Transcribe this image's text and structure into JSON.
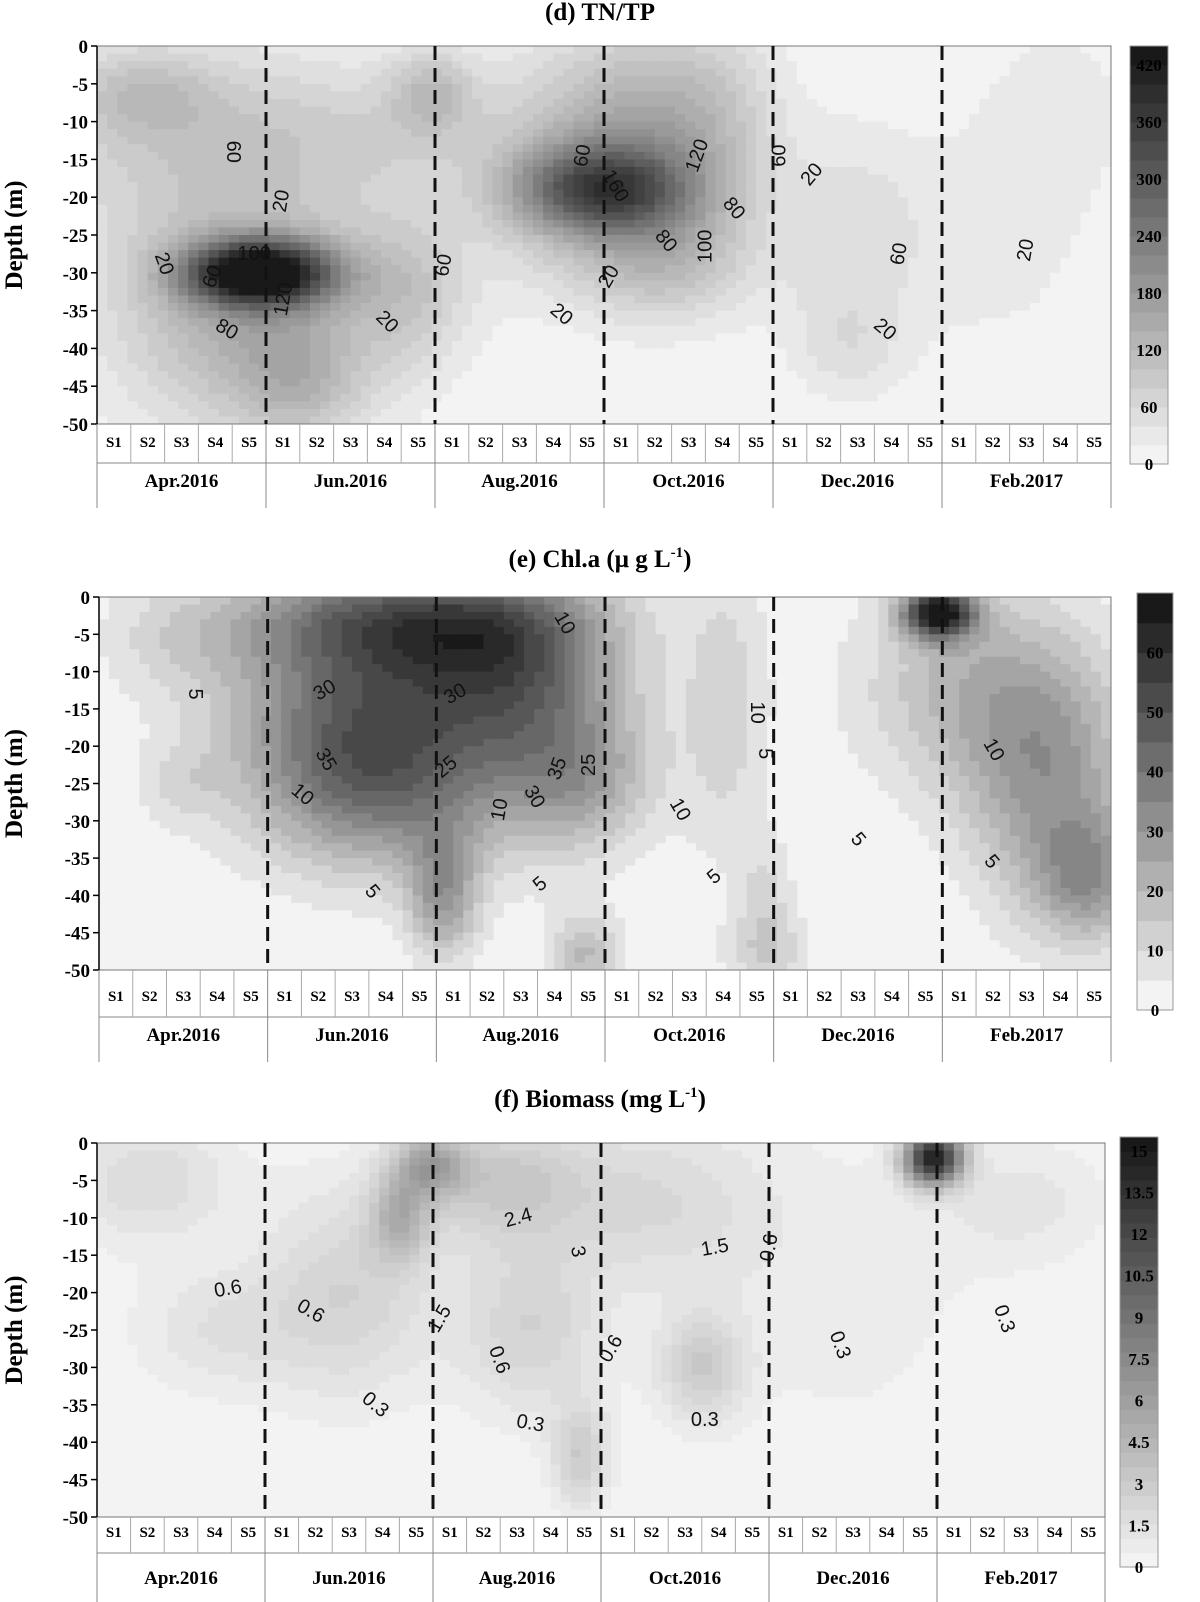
{
  "chart_data": [
    {
      "type": "heatmap",
      "title_prefix": "(d) TN/TP",
      "title_unit": "",
      "title_sup": "",
      "title_suffix": "",
      "ylabel": "Depth (m)",
      "yticks": [
        0,
        -5,
        -10,
        -15,
        -20,
        -25,
        -30,
        -35,
        -40,
        -45,
        -50
      ],
      "ylim": [
        -50,
        0
      ],
      "stations": [
        "S1",
        "S2",
        "S3",
        "S4",
        "S5"
      ],
      "months": [
        "Apr.2016",
        "Jun.2016",
        "Aug.2016",
        "Oct.2016",
        "Dec.2016",
        "Feb.2017"
      ],
      "colorbar_ticks": [
        0,
        60,
        120,
        180,
        240,
        300,
        360,
        420
      ],
      "colorbar_range": [
        0,
        440
      ],
      "colorbar_levels": 22,
      "blobs": [
        {
          "x": 0.16,
          "d": 30,
          "v": 440,
          "sx": 0.05,
          "sy": 3
        },
        {
          "x": 0.16,
          "d": 38,
          "v": 120,
          "sx": 0.09,
          "sy": 10
        },
        {
          "x": 0.13,
          "d": 25,
          "v": 60,
          "sx": 0.12,
          "sy": 12
        },
        {
          "x": 0.1,
          "d": 10,
          "v": 70,
          "sx": 0.12,
          "sy": 8
        },
        {
          "x": 0.04,
          "d": 6,
          "v": 60,
          "sx": 0.05,
          "sy": 4
        },
        {
          "x": 0.2,
          "d": 45,
          "v": 60,
          "sx": 0.04,
          "sy": 5
        },
        {
          "x": 0.3,
          "d": 12,
          "v": 40,
          "sx": 0.08,
          "sy": 6
        },
        {
          "x": 0.31,
          "d": 32,
          "v": 70,
          "sx": 0.04,
          "sy": 7
        },
        {
          "x": 0.33,
          "d": 6,
          "v": 90,
          "sx": 0.03,
          "sy": 4
        },
        {
          "x": 0.45,
          "d": 22,
          "v": 40,
          "sx": 0.06,
          "sy": 8
        },
        {
          "x": 0.5,
          "d": 19,
          "v": 260,
          "sx": 0.06,
          "sy": 4
        },
        {
          "x": 0.51,
          "d": 12,
          "v": 110,
          "sx": 0.08,
          "sy": 10
        },
        {
          "x": 0.56,
          "d": 28,
          "v": 110,
          "sx": 0.06,
          "sy": 6
        },
        {
          "x": 0.56,
          "d": 10,
          "v": 60,
          "sx": 0.06,
          "sy": 8
        },
        {
          "x": 0.62,
          "d": 10,
          "v": 40,
          "sx": 0.04,
          "sy": 10
        },
        {
          "x": 0.74,
          "d": 25,
          "v": 50,
          "sx": 0.05,
          "sy": 10
        },
        {
          "x": 0.74,
          "d": 40,
          "v": 40,
          "sx": 0.04,
          "sy": 5
        },
        {
          "x": 0.88,
          "d": 25,
          "v": 30,
          "sx": 0.08,
          "sy": 12
        },
        {
          "x": 0.95,
          "d": 8,
          "v": 30,
          "sx": 0.05,
          "sy": 8
        }
      ],
      "contour_labels": [
        {
          "text": "60",
          "x": 0.134,
          "d": 14,
          "rot": 90
        },
        {
          "text": "20",
          "x": 0.182,
          "d": 20.5,
          "rot": -80
        },
        {
          "text": "20",
          "x": 0.066,
          "d": 28.8,
          "rot": 70
        },
        {
          "text": "100",
          "x": 0.155,
          "d": 27.5,
          "rot": 0
        },
        {
          "text": "60",
          "x": 0.114,
          "d": 30.5,
          "rot": -70
        },
        {
          "text": "120",
          "x": 0.184,
          "d": 33.5,
          "rot": -80
        },
        {
          "text": "80",
          "x": 0.128,
          "d": 37.5,
          "rot": 30
        },
        {
          "text": "20",
          "x": 0.286,
          "d": 36.5,
          "rot": 45
        },
        {
          "text": "60",
          "x": 0.342,
          "d": 29,
          "rot": -80
        },
        {
          "text": "20",
          "x": 0.458,
          "d": 35.5,
          "rot": 40
        },
        {
          "text": "60",
          "x": 0.479,
          "d": 14.5,
          "rot": -80
        },
        {
          "text": "160",
          "x": 0.511,
          "d": 18.5,
          "rot": 60
        },
        {
          "text": "120",
          "x": 0.592,
          "d": 14.5,
          "rot": -70
        },
        {
          "text": "80",
          "x": 0.628,
          "d": 21.5,
          "rot": 50
        },
        {
          "text": "80",
          "x": 0.561,
          "d": 25.8,
          "rot": 50
        },
        {
          "text": "100",
          "x": 0.6,
          "d": 26.5,
          "rot": -90
        },
        {
          "text": "20",
          "x": 0.505,
          "d": 30.5,
          "rot": -60
        },
        {
          "text": "60",
          "x": 0.673,
          "d": 14.5,
          "rot": -90
        },
        {
          "text": "20",
          "x": 0.705,
          "d": 17,
          "rot": -50
        },
        {
          "text": "60",
          "x": 0.791,
          "d": 27.5,
          "rot": -80
        },
        {
          "text": "20",
          "x": 0.777,
          "d": 37.5,
          "rot": 40
        },
        {
          "text": "20",
          "x": 0.916,
          "d": 27,
          "rot": -80
        }
      ]
    },
    {
      "type": "heatmap",
      "title_prefix": "(e) Chl.a (",
      "title_unit": "μ  g L",
      "title_sup": "-1",
      "title_suffix": ")",
      "ylabel": "Depth (m)",
      "yticks": [
        0,
        -5,
        -10,
        -15,
        -20,
        -25,
        -30,
        -35,
        -40,
        -45,
        -50
      ],
      "ylim": [
        -50,
        0
      ],
      "stations": [
        "S1",
        "S2",
        "S3",
        "S4",
        "S5"
      ],
      "months": [
        "Apr.2016",
        "Jun.2016",
        "Aug.2016",
        "Oct.2016",
        "Dec.2016",
        "Feb.2017"
      ],
      "colorbar_ticks": [
        0,
        10,
        20,
        30,
        40,
        50,
        60
      ],
      "colorbar_range": [
        0,
        70
      ],
      "colorbar_levels": 14,
      "blobs": [
        {
          "x": 0.25,
          "d": 15,
          "v": 38,
          "sx": 0.09,
          "sy": 12
        },
        {
          "x": 0.3,
          "d": 3,
          "v": 30,
          "sx": 0.12,
          "sy": 5
        },
        {
          "x": 0.28,
          "d": 25,
          "v": 25,
          "sx": 0.08,
          "sy": 8
        },
        {
          "x": 0.38,
          "d": 8,
          "v": 25,
          "sx": 0.07,
          "sy": 8
        },
        {
          "x": 0.44,
          "d": 15,
          "v": 28,
          "sx": 0.07,
          "sy": 12
        },
        {
          "x": 0.48,
          "d": 25,
          "v": 15,
          "sx": 0.05,
          "sy": 6
        },
        {
          "x": 0.34,
          "d": 40,
          "v": 28,
          "sx": 0.025,
          "sy": 6
        },
        {
          "x": 0.48,
          "d": 48,
          "v": 20,
          "sx": 0.025,
          "sy": 4
        },
        {
          "x": 0.62,
          "d": 15,
          "v": 12,
          "sx": 0.03,
          "sy": 15
        },
        {
          "x": 0.66,
          "d": 48,
          "v": 12,
          "sx": 0.03,
          "sy": 4
        },
        {
          "x": 0.83,
          "d": 2,
          "v": 70,
          "sx": 0.025,
          "sy": 2.5
        },
        {
          "x": 0.86,
          "d": 12,
          "v": 20,
          "sx": 0.08,
          "sy": 10
        },
        {
          "x": 0.94,
          "d": 25,
          "v": 28,
          "sx": 0.06,
          "sy": 12
        },
        {
          "x": 0.98,
          "d": 38,
          "v": 25,
          "sx": 0.04,
          "sy": 6
        },
        {
          "x": 0.07,
          "d": 6,
          "v": 8,
          "sx": 0.05,
          "sy": 6
        },
        {
          "x": 0.08,
          "d": 25,
          "v": 8,
          "sx": 0.03,
          "sy": 4
        },
        {
          "x": 0.66,
          "d": 40,
          "v": 10,
          "sx": 0.02,
          "sy": 6
        }
      ],
      "contour_labels": [
        {
          "text": "5",
          "x": 0.095,
          "d": 13,
          "rot": 90
        },
        {
          "text": "30",
          "x": 0.223,
          "d": 12.5,
          "rot": -30
        },
        {
          "text": "35",
          "x": 0.224,
          "d": 21.8,
          "rot": 60
        },
        {
          "text": "10",
          "x": 0.201,
          "d": 26.5,
          "rot": 40
        },
        {
          "text": "5",
          "x": 0.27,
          "d": 39.5,
          "rot": 50
        },
        {
          "text": "30",
          "x": 0.352,
          "d": 13,
          "rot": -30
        },
        {
          "text": "25",
          "x": 0.343,
          "d": 22.8,
          "rot": -40
        },
        {
          "text": "10",
          "x": 0.396,
          "d": 28.5,
          "rot": -80
        },
        {
          "text": "35",
          "x": 0.453,
          "d": 23,
          "rot": -70
        },
        {
          "text": "30",
          "x": 0.43,
          "d": 26.8,
          "rot": 60
        },
        {
          "text": "25",
          "x": 0.484,
          "d": 22.5,
          "rot": -90
        },
        {
          "text": "5",
          "x": 0.436,
          "d": 38.5,
          "rot": -40
        },
        {
          "text": "10",
          "x": 0.46,
          "d": 3.5,
          "rot": 60
        },
        {
          "text": "10",
          "x": 0.574,
          "d": 28.5,
          "rot": 60
        },
        {
          "text": "5",
          "x": 0.608,
          "d": 37.5,
          "rot": -40
        },
        {
          "text": "10",
          "x": 0.65,
          "d": 15.5,
          "rot": 90
        },
        {
          "text": "5",
          "x": 0.658,
          "d": 21,
          "rot": 90
        },
        {
          "text": "5",
          "x": 0.75,
          "d": 32.5,
          "rot": 50
        },
        {
          "text": "10",
          "x": 0.884,
          "d": 20.5,
          "rot": 60
        },
        {
          "text": "5",
          "x": 0.882,
          "d": 35.5,
          "rot": 50
        }
      ]
    },
    {
      "type": "heatmap",
      "title_prefix": "(f) Biomass (",
      "title_unit": "mg L",
      "title_sup": "-1",
      "title_suffix": ")",
      "ylabel": "Depth (m)",
      "yticks": [
        0,
        -5,
        -10,
        -15,
        -20,
        -25,
        -30,
        -35,
        -40,
        -45,
        -50
      ],
      "ylim": [
        -50,
        0
      ],
      "stations": [
        "S1",
        "S2",
        "S3",
        "S4",
        "S5"
      ],
      "months": [
        "Apr.2016",
        "Jun.2016",
        "Aug.2016",
        "Oct.2016",
        "Dec.2016",
        "Feb.2017"
      ],
      "colorbar_ticks": [
        "0",
        "1.5",
        "3",
        "4.5",
        "6",
        "7.5",
        "9",
        "10.5",
        "12",
        "13.5",
        "15"
      ],
      "colorbar_range": [
        0,
        15.5
      ],
      "colorbar_levels": 30,
      "blobs": [
        {
          "x": 0.83,
          "d": 2,
          "v": 15,
          "sx": 0.02,
          "sy": 2.5
        },
        {
          "x": 0.3,
          "d": 10,
          "v": 4,
          "sx": 0.02,
          "sy": 4
        },
        {
          "x": 0.33,
          "d": 3,
          "v": 5,
          "sx": 0.025,
          "sy": 3
        },
        {
          "x": 0.4,
          "d": 5,
          "v": 3,
          "sx": 0.06,
          "sy": 6
        },
        {
          "x": 0.43,
          "d": 25,
          "v": 2.5,
          "sx": 0.05,
          "sy": 8
        },
        {
          "x": 0.48,
          "d": 42,
          "v": 3,
          "sx": 0.02,
          "sy": 5
        },
        {
          "x": 0.6,
          "d": 30,
          "v": 3,
          "sx": 0.03,
          "sy": 5
        },
        {
          "x": 0.25,
          "d": 20,
          "v": 2.5,
          "sx": 0.06,
          "sy": 10
        },
        {
          "x": 0.12,
          "d": 25,
          "v": 1.5,
          "sx": 0.06,
          "sy": 6
        },
        {
          "x": 0.05,
          "d": 5,
          "v": 2,
          "sx": 0.06,
          "sy": 6
        },
        {
          "x": 0.55,
          "d": 8,
          "v": 2,
          "sx": 0.08,
          "sy": 8
        },
        {
          "x": 0.92,
          "d": 8,
          "v": 1.2,
          "sx": 0.06,
          "sy": 6
        },
        {
          "x": 0.74,
          "d": 20,
          "v": 0.8,
          "sx": 0.1,
          "sy": 15
        }
      ],
      "contour_labels": [
        {
          "text": "0.6",
          "x": 0.13,
          "d": 19.5,
          "rot": -10
        },
        {
          "text": "0.6",
          "x": 0.212,
          "d": 22.5,
          "rot": 30
        },
        {
          "text": "0.3",
          "x": 0.276,
          "d": 35,
          "rot": 40
        },
        {
          "text": "1.5",
          "x": 0.34,
          "d": 23.5,
          "rot": -60
        },
        {
          "text": "2.4",
          "x": 0.418,
          "d": 10,
          "rot": -15
        },
        {
          "text": "3",
          "x": 0.477,
          "d": 14.5,
          "rot": 80
        },
        {
          "text": "0.6",
          "x": 0.399,
          "d": 29,
          "rot": 70
        },
        {
          "text": "0.3",
          "x": 0.43,
          "d": 37.5,
          "rot": 10
        },
        {
          "text": "0.6",
          "x": 0.51,
          "d": 27.5,
          "rot": -60
        },
        {
          "text": "1.5",
          "x": 0.613,
          "d": 14,
          "rot": -10
        },
        {
          "text": "0.6",
          "x": 0.667,
          "d": 14,
          "rot": -80
        },
        {
          "text": "0.3",
          "x": 0.603,
          "d": 37,
          "rot": 0
        },
        {
          "text": "0.3",
          "x": 0.737,
          "d": 27,
          "rot": 70
        },
        {
          "text": "0.3",
          "x": 0.9,
          "d": 23.5,
          "rot": 70
        }
      ]
    }
  ]
}
